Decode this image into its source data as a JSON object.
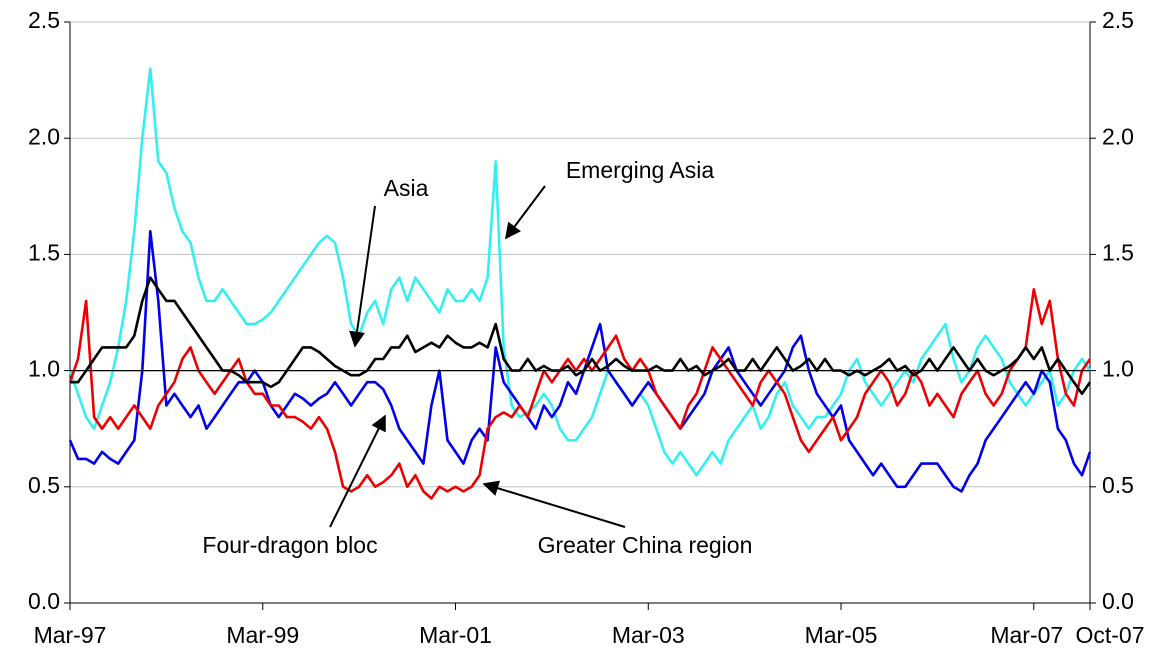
{
  "chart_data": {
    "type": "line",
    "x": [
      "Mar-97",
      "Apr-97",
      "May-97",
      "Jun-97",
      "Jul-97",
      "Aug-97",
      "Sep-97",
      "Oct-97",
      "Nov-97",
      "Dec-97",
      "Jan-98",
      "Feb-98",
      "Mar-98",
      "Apr-98",
      "May-98",
      "Jun-98",
      "Jul-98",
      "Aug-98",
      "Sep-98",
      "Oct-98",
      "Nov-98",
      "Dec-98",
      "Jan-99",
      "Feb-99",
      "Mar-99",
      "Apr-99",
      "May-99",
      "Jun-99",
      "Jul-99",
      "Aug-99",
      "Sep-99",
      "Oct-99",
      "Nov-99",
      "Dec-99",
      "Jan-00",
      "Feb-00",
      "Mar-00",
      "Apr-00",
      "May-00",
      "Jun-00",
      "Jul-00",
      "Aug-00",
      "Sep-00",
      "Oct-00",
      "Nov-00",
      "Dec-00",
      "Jan-01",
      "Feb-01",
      "Mar-01",
      "Apr-01",
      "May-01",
      "Jun-01",
      "Jul-01",
      "Aug-01",
      "Sep-01",
      "Oct-01",
      "Nov-01",
      "Dec-01",
      "Jan-02",
      "Feb-02",
      "Mar-02",
      "Apr-02",
      "May-02",
      "Jun-02",
      "Jul-02",
      "Aug-02",
      "Sep-02",
      "Oct-02",
      "Nov-02",
      "Dec-02",
      "Jan-03",
      "Feb-03",
      "Mar-03",
      "Apr-03",
      "May-03",
      "Jun-03",
      "Jul-03",
      "Aug-03",
      "Sep-03",
      "Oct-03",
      "Nov-03",
      "Dec-03",
      "Jan-04",
      "Feb-04",
      "Mar-04",
      "Apr-04",
      "May-04",
      "Jun-04",
      "Jul-04",
      "Aug-04",
      "Sep-04",
      "Oct-04",
      "Nov-04",
      "Dec-04",
      "Jan-05",
      "Feb-05",
      "Mar-05",
      "Apr-05",
      "May-05",
      "Jun-05",
      "Jul-05",
      "Aug-05",
      "Sep-05",
      "Oct-05",
      "Nov-05",
      "Dec-05",
      "Jan-06",
      "Feb-06",
      "Mar-06",
      "Apr-06",
      "May-06",
      "Jun-06",
      "Jul-06",
      "Aug-06",
      "Sep-06",
      "Oct-06",
      "Nov-06",
      "Dec-06",
      "Jan-07",
      "Feb-07",
      "Mar-07",
      "Apr-07",
      "May-07",
      "Jun-07",
      "Jul-07",
      "Aug-07",
      "Sep-07",
      "Oct-07"
    ],
    "xticks": [
      "Mar-97",
      "Mar-99",
      "Mar-01",
      "Mar-03",
      "Mar-05",
      "Mar-07",
      "Oct-07"
    ],
    "series": [
      {
        "name": "Emerging Asia",
        "color": "#33f0f0",
        "values": [
          1.0,
          0.9,
          0.8,
          0.75,
          0.85,
          0.95,
          1.1,
          1.3,
          1.6,
          2.0,
          2.3,
          1.9,
          1.85,
          1.7,
          1.6,
          1.55,
          1.4,
          1.3,
          1.3,
          1.35,
          1.3,
          1.25,
          1.2,
          1.2,
          1.22,
          1.25,
          1.3,
          1.35,
          1.4,
          1.45,
          1.5,
          1.55,
          1.58,
          1.55,
          1.4,
          1.2,
          1.15,
          1.25,
          1.3,
          1.2,
          1.35,
          1.4,
          1.3,
          1.4,
          1.35,
          1.3,
          1.25,
          1.35,
          1.3,
          1.3,
          1.35,
          1.3,
          1.4,
          1.9,
          1.1,
          0.85,
          0.8,
          0.82,
          0.85,
          0.9,
          0.85,
          0.75,
          0.7,
          0.7,
          0.75,
          0.8,
          0.9,
          1.0,
          0.95,
          0.9,
          0.85,
          0.9,
          0.85,
          0.75,
          0.65,
          0.6,
          0.65,
          0.6,
          0.55,
          0.6,
          0.65,
          0.6,
          0.7,
          0.75,
          0.8,
          0.85,
          0.75,
          0.8,
          0.9,
          0.95,
          0.85,
          0.8,
          0.75,
          0.8,
          0.8,
          0.85,
          0.9,
          1.0,
          1.05,
          0.95,
          0.9,
          0.85,
          0.9,
          0.95,
          1.0,
          0.95,
          1.05,
          1.1,
          1.15,
          1.2,
          1.05,
          0.95,
          1.0,
          1.1,
          1.15,
          1.1,
          1.05,
          0.95,
          0.9,
          0.85,
          0.9,
          0.95,
          1.0,
          0.85,
          0.9,
          1.0,
          1.05,
          1.0
        ]
      },
      {
        "name": "Four-dragon bloc",
        "color": "#0000ee",
        "values": [
          0.7,
          0.62,
          0.62,
          0.6,
          0.65,
          0.62,
          0.6,
          0.65,
          0.7,
          1.0,
          1.6,
          1.3,
          0.85,
          0.9,
          0.85,
          0.8,
          0.85,
          0.75,
          0.8,
          0.85,
          0.9,
          0.95,
          0.95,
          1.0,
          0.95,
          0.85,
          0.8,
          0.85,
          0.9,
          0.88,
          0.85,
          0.88,
          0.9,
          0.95,
          0.9,
          0.85,
          0.9,
          0.95,
          0.95,
          0.92,
          0.85,
          0.75,
          0.7,
          0.65,
          0.6,
          0.85,
          1.0,
          0.7,
          0.65,
          0.6,
          0.7,
          0.75,
          0.7,
          1.1,
          0.95,
          0.9,
          0.85,
          0.8,
          0.75,
          0.85,
          0.8,
          0.85,
          0.95,
          0.9,
          1.0,
          1.1,
          1.2,
          1.0,
          0.95,
          0.9,
          0.85,
          0.9,
          0.95,
          0.9,
          0.85,
          0.8,
          0.75,
          0.8,
          0.85,
          0.9,
          1.0,
          1.05,
          1.1,
          1.0,
          0.95,
          0.9,
          0.85,
          0.9,
          0.95,
          1.0,
          1.1,
          1.15,
          1.0,
          0.9,
          0.85,
          0.8,
          0.85,
          0.7,
          0.65,
          0.6,
          0.55,
          0.6,
          0.55,
          0.5,
          0.5,
          0.55,
          0.6,
          0.6,
          0.6,
          0.55,
          0.5,
          0.48,
          0.55,
          0.6,
          0.7,
          0.75,
          0.8,
          0.85,
          0.9,
          0.95,
          0.9,
          1.0,
          0.95,
          0.75,
          0.7,
          0.6,
          0.55,
          0.65
        ]
      },
      {
        "name": "Greater China region",
        "color": "#ee0000",
        "values": [
          0.95,
          1.05,
          1.3,
          0.8,
          0.75,
          0.8,
          0.75,
          0.8,
          0.85,
          0.8,
          0.75,
          0.85,
          0.9,
          0.95,
          1.05,
          1.1,
          1.0,
          0.95,
          0.9,
          0.95,
          1.0,
          1.05,
          0.95,
          0.9,
          0.9,
          0.85,
          0.85,
          0.8,
          0.8,
          0.78,
          0.75,
          0.8,
          0.75,
          0.65,
          0.5,
          0.48,
          0.5,
          0.55,
          0.5,
          0.52,
          0.55,
          0.6,
          0.5,
          0.55,
          0.48,
          0.45,
          0.5,
          0.48,
          0.5,
          0.48,
          0.5,
          0.55,
          0.75,
          0.8,
          0.82,
          0.8,
          0.85,
          0.8,
          0.9,
          1.0,
          0.95,
          1.0,
          1.05,
          1.0,
          1.05,
          1.0,
          1.05,
          1.1,
          1.15,
          1.05,
          1.0,
          1.05,
          1.0,
          0.9,
          0.85,
          0.8,
          0.75,
          0.85,
          0.9,
          1.0,
          1.1,
          1.05,
          1.0,
          0.95,
          0.9,
          0.85,
          0.95,
          1.0,
          0.95,
          0.9,
          0.8,
          0.7,
          0.65,
          0.7,
          0.75,
          0.8,
          0.7,
          0.75,
          0.8,
          0.9,
          0.95,
          1.0,
          0.95,
          0.85,
          0.9,
          1.0,
          0.95,
          0.85,
          0.9,
          0.85,
          0.8,
          0.9,
          0.95,
          1.0,
          0.9,
          0.85,
          0.9,
          1.0,
          1.05,
          1.1,
          1.35,
          1.2,
          1.3,
          1.05,
          0.9,
          0.85,
          1.0,
          1.05
        ]
      },
      {
        "name": "Asia",
        "color": "#000000",
        "values": [
          0.95,
          0.95,
          1.0,
          1.05,
          1.1,
          1.1,
          1.1,
          1.1,
          1.15,
          1.3,
          1.4,
          1.35,
          1.3,
          1.3,
          1.25,
          1.2,
          1.15,
          1.1,
          1.05,
          1.0,
          1.0,
          0.98,
          0.95,
          0.95,
          0.95,
          0.93,
          0.95,
          1.0,
          1.05,
          1.1,
          1.1,
          1.08,
          1.05,
          1.02,
          1.0,
          0.98,
          0.98,
          1.0,
          1.05,
          1.05,
          1.1,
          1.1,
          1.15,
          1.08,
          1.1,
          1.12,
          1.1,
          1.15,
          1.12,
          1.1,
          1.1,
          1.12,
          1.1,
          1.2,
          1.05,
          1.0,
          1.0,
          1.05,
          1.0,
          1.02,
          1.0,
          1.0,
          1.02,
          0.98,
          1.0,
          1.05,
          1.0,
          1.02,
          1.05,
          1.02,
          1.0,
          1.0,
          1.0,
          1.02,
          1.0,
          1.0,
          1.05,
          1.0,
          1.02,
          0.98,
          1.0,
          1.02,
          1.05,
          1.0,
          1.0,
          1.05,
          1.0,
          1.05,
          1.1,
          1.05,
          1.0,
          1.02,
          1.05,
          1.0,
          1.05,
          1.0,
          1.0,
          0.98,
          1.0,
          0.98,
          1.0,
          1.02,
          1.05,
          1.0,
          1.02,
          0.98,
          1.0,
          1.05,
          1.0,
          1.05,
          1.1,
          1.05,
          1.0,
          1.05,
          1.0,
          0.98,
          1.0,
          1.02,
          1.05,
          1.1,
          1.05,
          1.1,
          1.0,
          1.05,
          1.0,
          0.95,
          0.9,
          0.95
        ]
      }
    ],
    "ylim": [
      0,
      2.5
    ],
    "yticks": [
      {
        "value": 0,
        "label": "0.0"
      },
      0.5,
      {
        "value": 1,
        "label": "1.0"
      },
      1.5,
      {
        "value": 2,
        "label": "2.0"
      },
      2.5
    ],
    "y2lim": [
      0,
      2.5
    ],
    "y2ticks": [
      {
        "value": 0,
        "label": "0.0"
      },
      0.5,
      {
        "value": 1,
        "label": "1.0"
      },
      1.5,
      {
        "value": 2,
        "label": "2.0"
      },
      2.5
    ],
    "reference_line": 1,
    "grid": true
  }
}
